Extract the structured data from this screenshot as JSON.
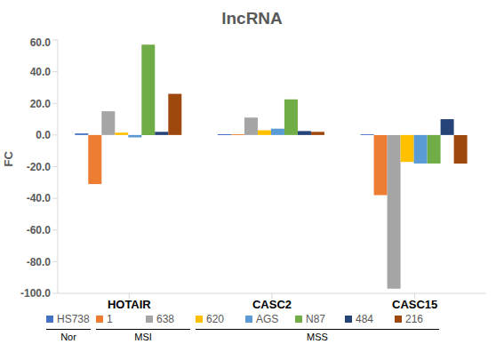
{
  "chart_data": {
    "type": "bar",
    "title": "lncRNA",
    "y_label": "FC",
    "categories": [
      "HOTAIR",
      "CASC2",
      "CASC15"
    ],
    "series": [
      {
        "name": "HS738",
        "color": "#4472c4",
        "values": [
          1,
          0.5,
          0.5
        ]
      },
      {
        "name": "1",
        "color": "#ed7d31",
        "values": [
          -31,
          0.5,
          -38
        ]
      },
      {
        "name": "638",
        "color": "#a5a5a5",
        "values": [
          15,
          11,
          -97
        ]
      },
      {
        "name": "620",
        "color": "#ffc000",
        "values": [
          1.5,
          3,
          -17
        ]
      },
      {
        "name": "AGS",
        "color": "#5b9bd5",
        "values": [
          -1.5,
          4,
          -18
        ]
      },
      {
        "name": "N87",
        "color": "#70ad47",
        "values": [
          57,
          22.5,
          -18
        ]
      },
      {
        "name": "484",
        "color": "#264478",
        "values": [
          2,
          2.5,
          10
        ]
      },
      {
        "name": "216",
        "color": "#9e480e",
        "values": [
          26,
          2,
          -18
        ]
      }
    ],
    "ylim": [
      -100,
      60
    ],
    "yticks": [
      {
        "value": -100,
        "label": "-100.0"
      },
      {
        "value": -80,
        "label": "-80.0"
      },
      {
        "value": -60,
        "label": "-60.0"
      },
      {
        "value": -40,
        "label": "-40.0"
      },
      {
        "value": -20,
        "label": "-20.0"
      },
      {
        "value": 0,
        "label": "0.0"
      },
      {
        "value": 20,
        "label": "20.0"
      },
      {
        "value": 40,
        "label": "40.0"
      },
      {
        "value": 60,
        "label": "60.0"
      }
    ],
    "grid": false,
    "legend": "bottom",
    "annotations": [
      {
        "text": "Nor",
        "series": [
          "HS738"
        ]
      },
      {
        "text": "MSI",
        "series": [
          "1",
          "638"
        ]
      },
      {
        "text": "MSS",
        "series": [
          "620",
          "AGS",
          "N87",
          "484",
          "216"
        ]
      }
    ]
  }
}
